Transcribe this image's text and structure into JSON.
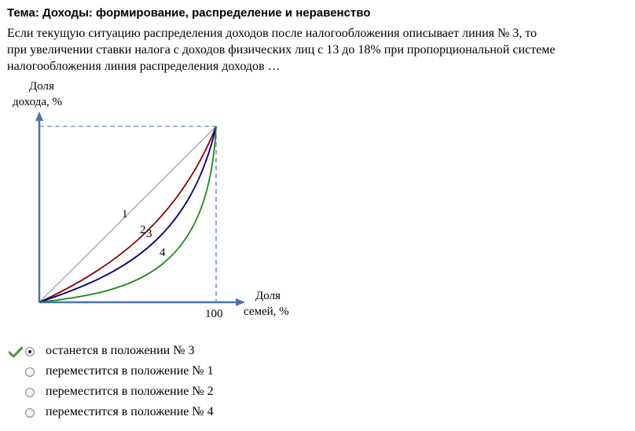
{
  "topic": "Тема: Доходы: формирование, распределение и неравенство",
  "question": {
    "lines": [
      "Если текущую ситуацию распределения доходов после налогообложения описывает линия № 3, то",
      "при увеличении ставки налога с доходов физических лиц с 13 до 18% при пропорциональной системе",
      "налогообложения линия распределения доходов …"
    ]
  },
  "graph": {
    "y_label_line1": "Доля",
    "y_label_line2": "дохода, %",
    "x_label_line1": "Доля",
    "x_label_line2": "семей, %",
    "x_tick": "100",
    "curve_labels": [
      "1",
      "2",
      "3",
      "4"
    ],
    "colors": {
      "axis": "#4a72b0",
      "dashed": "#4a72b0",
      "line1": "#6080b8",
      "line2": "#8b0000",
      "line3": "#000080",
      "line4": "#1a8a1a"
    }
  },
  "options": [
    {
      "label": "останется в положении № 3",
      "selected": true,
      "marked_correct": true
    },
    {
      "label": "переместится в положение № 1",
      "selected": false,
      "marked_correct": false
    },
    {
      "label": "переместится в положение № 2",
      "selected": false,
      "marked_correct": false
    },
    {
      "label": "переместится в положение № 4",
      "selected": false,
      "marked_correct": false
    }
  ],
  "icons": {
    "check": "checkmark-icon",
    "radio": "radio-button"
  }
}
